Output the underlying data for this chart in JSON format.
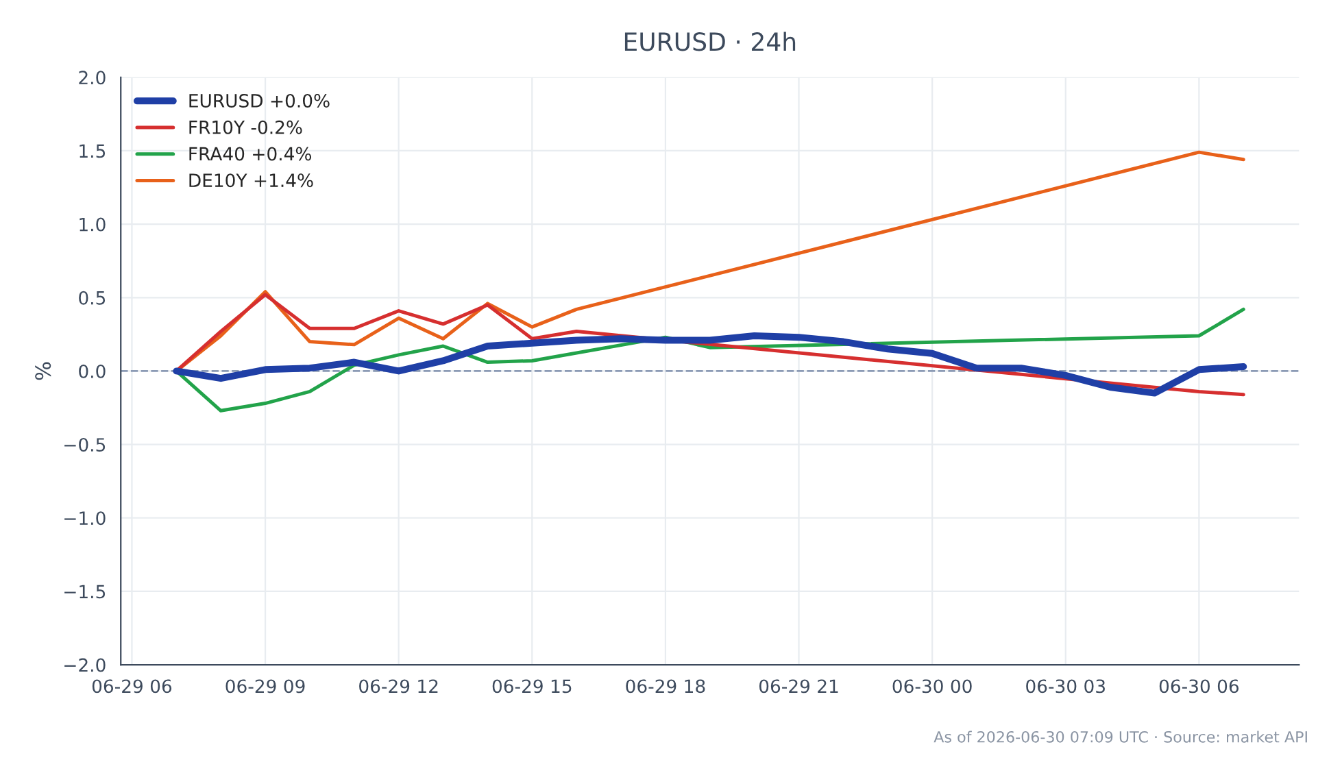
{
  "chart_data": {
    "type": "line",
    "title": "EURUSD · 24h",
    "ylabel": "%",
    "annotations": [
      "As of 2026-06-30 07:09 UTC · Source: market API"
    ],
    "series": [
      {
        "name": "EURUSD +0.0%",
        "color": "#1f3fa6",
        "x": [
          "2026-06-29T07:00",
          "2026-06-29T08:00",
          "2026-06-29T09:00",
          "2026-06-29T10:00",
          "2026-06-29T11:00",
          "2026-06-29T12:00",
          "2026-06-29T13:00",
          "2026-06-29T14:00",
          "2026-06-29T15:00",
          "2026-06-29T16:00",
          "2026-06-29T17:00",
          "2026-06-29T18:00",
          "2026-06-29T19:00",
          "2026-06-29T20:00",
          "2026-06-29T21:00",
          "2026-06-29T22:00",
          "2026-06-29T23:00",
          "2026-06-30T00:00",
          "2026-06-30T01:00",
          "2026-06-30T02:00",
          "2026-06-30T03:00",
          "2026-06-30T04:00",
          "2026-06-30T05:00",
          "2026-06-30T06:00",
          "2026-06-30T07:00"
        ],
        "values": [
          0,
          -0.05,
          0.01,
          0.02,
          0.06,
          0.0,
          0.07,
          0.17,
          0.19,
          0.21,
          0.22,
          0.21,
          0.21,
          0.24,
          0.23,
          0.2,
          0.15,
          0.12,
          0.02,
          0.02,
          -0.03,
          -0.11,
          -0.15,
          0.01,
          0.03
        ]
      },
      {
        "name": "FR10Y -0.2%",
        "color": "#d62f2f",
        "x": [
          "2026-06-29T07:00",
          "2026-06-29T08:00",
          "2026-06-29T09:00",
          "2026-06-29T10:00",
          "2026-06-29T11:00",
          "2026-06-29T12:00",
          "2026-06-29T13:00",
          "2026-06-29T14:00",
          "2026-06-29T15:00",
          "2026-06-29T16:00",
          "2026-06-30T06:00",
          "2026-06-30T07:00"
        ],
        "values": [
          0,
          0.27,
          0.52,
          0.29,
          0.29,
          0.41,
          0.32,
          0.45,
          0.22,
          0.27,
          -0.14,
          -0.16
        ]
      },
      {
        "name": "FRA40 +0.4%",
        "color": "#22a34a",
        "x": [
          "2026-06-29T07:00",
          "2026-06-29T08:00",
          "2026-06-29T09:00",
          "2026-06-29T10:00",
          "2026-06-29T11:00",
          "2026-06-29T12:00",
          "2026-06-29T13:00",
          "2026-06-29T14:00",
          "2026-06-29T15:00",
          "2026-06-29T18:00",
          "2026-06-29T19:00",
          "2026-06-30T06:00",
          "2026-06-30T07:00"
        ],
        "values": [
          0,
          -0.27,
          -0.22,
          -0.14,
          0.04,
          0.11,
          0.17,
          0.06,
          0.07,
          0.23,
          0.16,
          0.24,
          0.42
        ]
      },
      {
        "name": "DE10Y +1.4%",
        "color": "#e8611a",
        "x": [
          "2026-06-29T07:00",
          "2026-06-29T08:00",
          "2026-06-29T09:00",
          "2026-06-29T10:00",
          "2026-06-29T11:00",
          "2026-06-29T12:00",
          "2026-06-29T13:00",
          "2026-06-29T14:00",
          "2026-06-29T15:00",
          "2026-06-29T16:00",
          "2026-06-30T06:00",
          "2026-06-30T07:00"
        ],
        "values": [
          0,
          0.24,
          0.54,
          0.2,
          0.18,
          0.36,
          0.22,
          0.46,
          0.3,
          0.42,
          1.49,
          1.44
        ]
      }
    ],
    "xlim": [
      "2026-06-29T05:45",
      "2026-06-30T08:15"
    ],
    "xticks": [
      {
        "value": "2026-06-29T06:00",
        "label": "06-29 06"
      },
      {
        "value": "2026-06-29T09:00",
        "label": "06-29 09"
      },
      {
        "value": "2026-06-29T12:00",
        "label": "06-29 12"
      },
      {
        "value": "2026-06-29T15:00",
        "label": "06-29 15"
      },
      {
        "value": "2026-06-29T18:00",
        "label": "06-29 18"
      },
      {
        "value": "2026-06-29T21:00",
        "label": "06-29 21"
      },
      {
        "value": "2026-06-30T00:00",
        "label": "06-30 00"
      },
      {
        "value": "2026-06-30T03:00",
        "label": "06-30 03"
      },
      {
        "value": "2026-06-30T06:00",
        "label": "06-30 06"
      }
    ],
    "ylim": [
      -2.0,
      2.0
    ],
    "yticks": [
      {
        "value": -2,
        "label": "−2.0"
      },
      {
        "value": -1.5,
        "label": "−1.5"
      },
      {
        "value": -1,
        "label": "−1.0"
      },
      {
        "value": -0.5,
        "label": "−0.5"
      },
      {
        "value": 0,
        "label": "0.0"
      },
      {
        "value": 0.5,
        "label": "0.5"
      },
      {
        "value": 1,
        "label": "1.0"
      },
      {
        "value": 1.5,
        "label": "1.5"
      },
      {
        "value": 2,
        "label": "2.0"
      }
    ],
    "ref_lines": [
      {
        "axis": "y",
        "value": 0,
        "label": null,
        "color": "#8c9bb5",
        "line_style": "dashed"
      }
    ],
    "grid": true,
    "legend": "top left",
    "line_style": "solid",
    "marker": "none"
  }
}
